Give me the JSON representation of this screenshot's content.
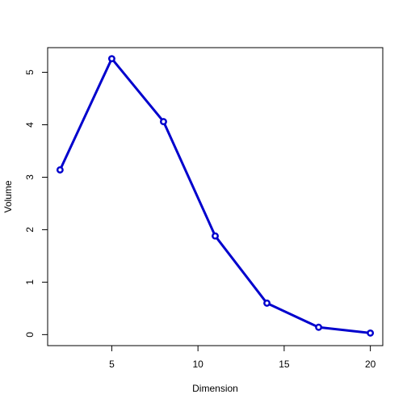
{
  "chart_data": {
    "type": "line",
    "title": "",
    "xlabel": "Dimension",
    "ylabel": "Volume",
    "x": [
      2,
      5,
      8,
      11,
      14,
      17,
      20
    ],
    "series": [
      {
        "values": [
          3.14,
          5.26,
          4.06,
          1.88,
          0.6,
          0.14,
          0.03
        ]
      }
    ],
    "xlim": [
      1.28,
      20.72
    ],
    "ylim": [
      -0.21,
      5.47
    ],
    "xticks": [
      5,
      10,
      15,
      20
    ],
    "xtick_labels": [
      "5",
      "10",
      "15",
      "20"
    ],
    "yticks": [
      0,
      1,
      2,
      3,
      4,
      5
    ],
    "ytick_labels": [
      "0",
      "1",
      "2",
      "3",
      "4",
      "5"
    ],
    "grid": false,
    "legend": "none",
    "line_color": "#0000cd",
    "marker": "hollow-circle"
  }
}
